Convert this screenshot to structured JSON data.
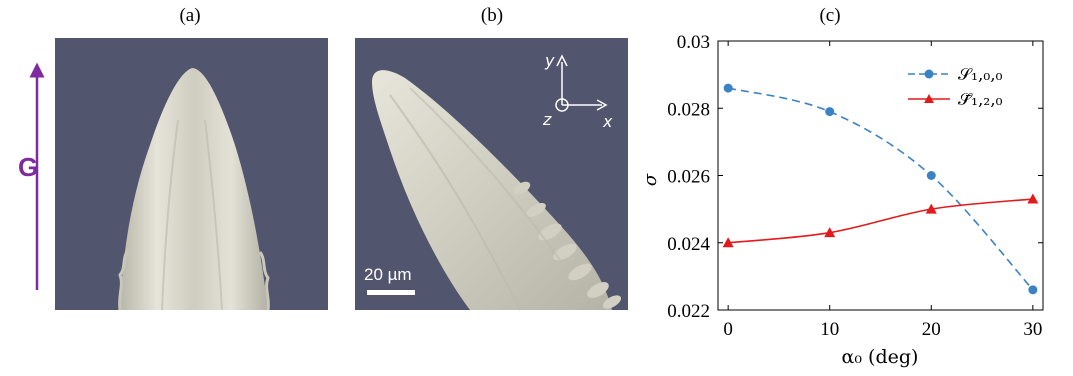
{
  "panels": {
    "a": {
      "label": "(a)"
    },
    "b": {
      "label": "(b)"
    },
    "c": {
      "label": "(c)"
    }
  },
  "gradient_arrow": {
    "label": "G",
    "color": "#7f2aa0"
  },
  "axes_triad": {
    "y_label": "y",
    "z_label": "z",
    "x_label": "x"
  },
  "scale_bar": {
    "label": "20 µm"
  },
  "colors": {
    "background": "#51556e",
    "dendrite": "#d7d5c8",
    "series1": "#3b82c4",
    "series2": "#e3191c"
  },
  "chart_data": {
    "type": "line",
    "title": "",
    "xlabel": "α₀ (deg)",
    "ylabel": "σ",
    "xlim": [
      -1,
      31
    ],
    "ylim": [
      0.022,
      0.03
    ],
    "xticks": [
      0,
      10,
      20,
      30
    ],
    "yticks": [
      0.022,
      0.024,
      0.026,
      0.028,
      0.03
    ],
    "xtick_labels": [
      "0",
      "10",
      "20",
      "30"
    ],
    "ytick_labels": [
      "0.022",
      "0.024",
      "0.026",
      "0.028",
      "0.03"
    ],
    "grid": false,
    "legend_position": "top-right",
    "series": [
      {
        "name": "𝒮₁,₀,₀",
        "x": [
          0,
          10,
          20,
          30
        ],
        "values": [
          0.0286,
          0.0279,
          0.026,
          0.0226
        ],
        "line_style": "dashed",
        "marker": "circle",
        "color": "#3b82c4"
      },
      {
        "name": "𝒮̄₁,₂,₀",
        "x": [
          0,
          10,
          20,
          30
        ],
        "values": [
          0.024,
          0.0243,
          0.025,
          0.0253
        ],
        "line_style": "solid",
        "marker": "triangle",
        "color": "#e3191c"
      }
    ]
  }
}
